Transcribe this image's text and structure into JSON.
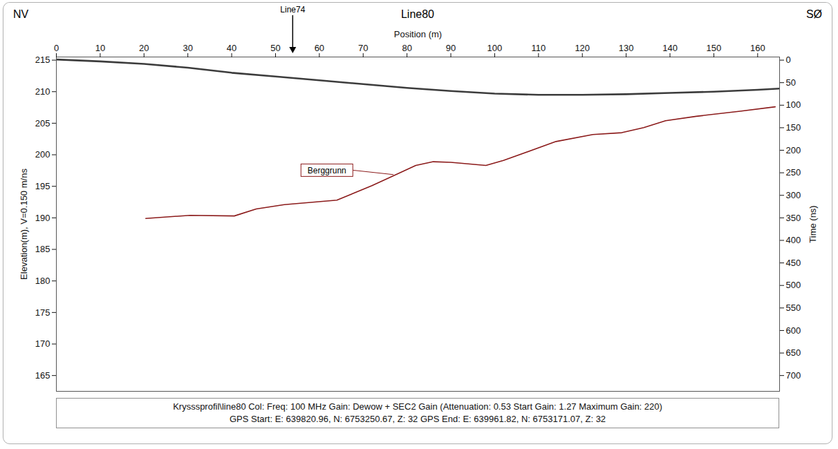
{
  "chart_data": {
    "type": "line",
    "title": "Line80",
    "direction_labels": [
      "NV",
      "SØ"
    ],
    "x_label": "Position (m)",
    "y_label": "Elevation(m), V=0.150 m/ns",
    "y2_label": "Time (ns)",
    "xlim": [
      0,
      165
    ],
    "xticks": [
      0,
      10,
      20,
      30,
      40,
      50,
      60,
      70,
      80,
      90,
      100,
      110,
      120,
      130,
      140,
      150,
      160
    ],
    "ylim": [
      162.5,
      215.5
    ],
    "yticks": [
      165,
      170,
      175,
      180,
      185,
      190,
      195,
      200,
      205,
      210,
      215
    ],
    "y2lim": [
      -7,
      735
    ],
    "y2ticks": [
      0,
      50,
      100,
      150,
      200,
      250,
      300,
      350,
      400,
      450,
      500,
      550,
      600,
      650,
      700
    ],
    "grid": false,
    "series": [
      {
        "color": "#3c3c3c",
        "x": [
          0,
          10,
          20,
          30,
          40,
          50,
          60,
          70,
          80,
          90,
          100,
          110,
          120,
          130,
          140,
          150,
          160,
          165
        ],
        "values": [
          215.1,
          214.8,
          214.4,
          213.8,
          213.0,
          212.4,
          211.8,
          211.2,
          210.6,
          210.1,
          209.7,
          209.5,
          209.5,
          209.6,
          209.8,
          210.0,
          210.3,
          210.5
        ]
      },
      {
        "name": "Berggrunn",
        "color": "#8b1a1a",
        "x": [
          20.4,
          30.5,
          40.6,
          45.6,
          52,
          64,
          72,
          82,
          86,
          90,
          98,
          102,
          114,
          122.4,
          129,
          134,
          139,
          146,
          156,
          164
        ],
        "values": [
          189.9,
          190.4,
          190.3,
          191.4,
          192.1,
          192.8,
          195.1,
          198.3,
          198.9,
          198.8,
          198.3,
          199.1,
          202.1,
          203.2,
          203.5,
          204.3,
          205.4,
          206.1,
          206.9,
          207.6
        ],
        "label_x": 61.8,
        "label_y": 197.5,
        "label_target": [
          77,
          196.8
        ]
      }
    ],
    "annotations": [
      {
        "text": "Line74",
        "x": 54
      }
    ],
    "caption": [
      "Krysssprofil\\line80  Col:  Freq: 100 MHz Gain: Dewow + SEC2 Gain (Attenuation: 0.53 Start Gain: 1.27 Maximum Gain: 220)",
      "GPS Start: E: 639820.96, N: 6753250.67, Z: 32 GPS End: E: 639961.82, N: 6753171.07, Z: 32"
    ]
  }
}
